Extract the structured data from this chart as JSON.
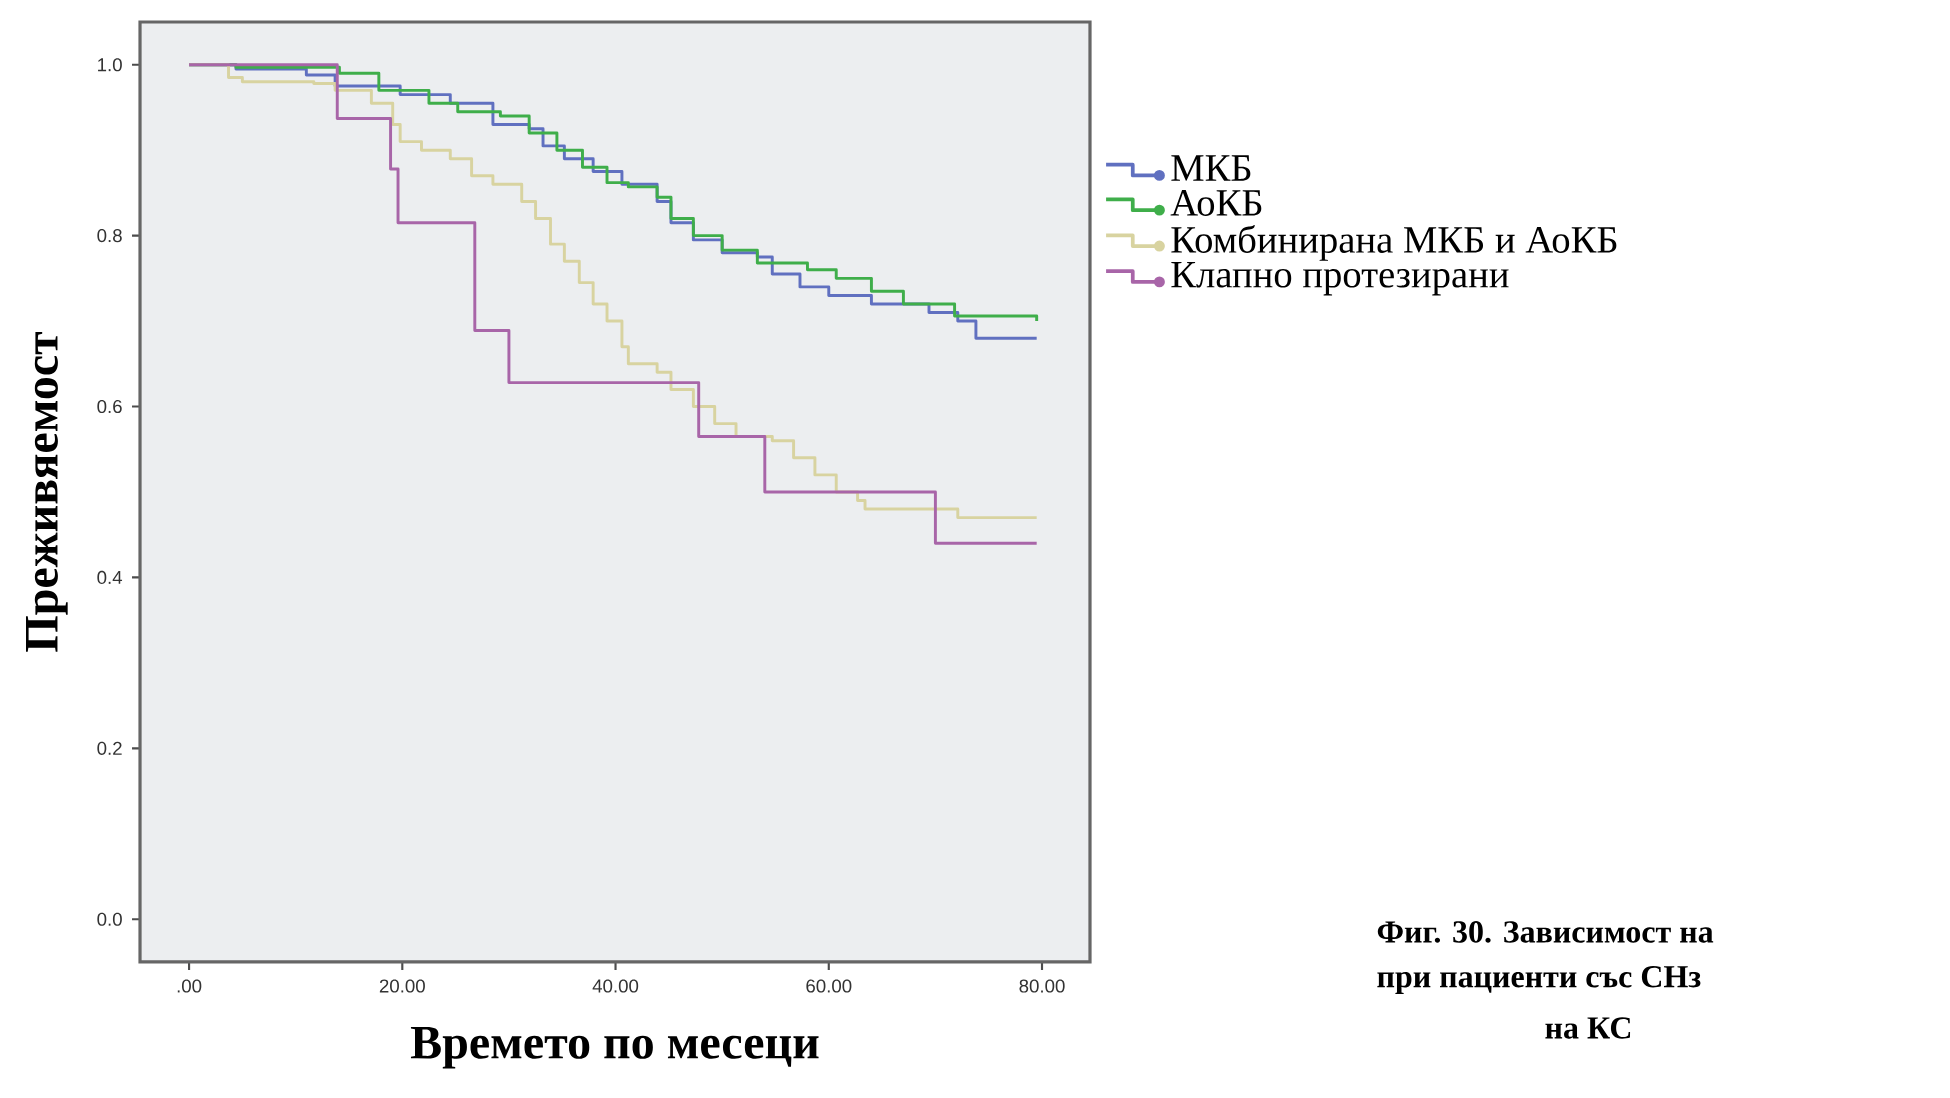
{
  "chart_data": {
    "type": "step",
    "xlabel": "Времето по месеци",
    "ylabel": "Преживяемост",
    "xlim": [
      -4.6,
      84.5
    ],
    "ylim": [
      -0.05,
      1.05
    ],
    "xticks": [
      {
        "value": 0,
        "label": ".00"
      },
      {
        "value": 20,
        "label": "20.00"
      },
      {
        "value": 40,
        "label": "40.00"
      },
      {
        "value": 60,
        "label": "60.00"
      },
      {
        "value": 80,
        "label": "80.00"
      }
    ],
    "yticks": [
      {
        "value": 0,
        "label": "0.0"
      },
      {
        "value": 0.2,
        "label": "0.2"
      },
      {
        "value": 0.4,
        "label": "0.4"
      },
      {
        "value": 0.6,
        "label": "0.6"
      },
      {
        "value": 0.8,
        "label": "0.8"
      },
      {
        "value": 1.0,
        "label": "1.0"
      }
    ],
    "legend": "right",
    "series": [
      {
        "name": "МКБ",
        "color": "#6070c0",
        "x": [
          0,
          4.4,
          11,
          13.7,
          19.8,
          24.5,
          28.5,
          31.9,
          33.2,
          35.2,
          37.9,
          40.6,
          43.9,
          45.2,
          47.3,
          50,
          53.3,
          54.7,
          57.3,
          60,
          64,
          69.4,
          72.1,
          73.8,
          79.5
        ],
        "values": [
          1.0,
          0.995,
          0.988,
          0.975,
          0.965,
          0.955,
          0.93,
          0.925,
          0.905,
          0.89,
          0.875,
          0.86,
          0.84,
          0.815,
          0.795,
          0.78,
          0.775,
          0.755,
          0.74,
          0.73,
          0.72,
          0.71,
          0.7,
          0.68,
          0.68
        ]
      },
      {
        "name": "АоКБ",
        "color": "#3fae4a",
        "x": [
          0,
          4.4,
          14.1,
          17.8,
          22.5,
          25.2,
          29.2,
          31.9,
          34.5,
          36.9,
          39.2,
          41.2,
          43.9,
          45.2,
          47.3,
          50,
          53.3,
          58,
          60.7,
          64,
          67,
          71.8,
          79.5
        ],
        "values": [
          1.0,
          0.997,
          0.99,
          0.97,
          0.955,
          0.945,
          0.94,
          0.92,
          0.9,
          0.88,
          0.862,
          0.857,
          0.845,
          0.82,
          0.8,
          0.783,
          0.768,
          0.76,
          0.75,
          0.735,
          0.72,
          0.706,
          0.7
        ]
      },
      {
        "name": "Комбинирана МКБ и АоКБ",
        "color": "#d8d3a0",
        "x": [
          0,
          3.7,
          5,
          11.7,
          13.7,
          17.1,
          19.1,
          19.8,
          21.8,
          24.5,
          26.5,
          28.5,
          31.2,
          32.5,
          33.9,
          35.2,
          36.6,
          37.9,
          39.2,
          40.6,
          41.2,
          43.9,
          45.2,
          47.3,
          49.3,
          51.3,
          54.7,
          56.7,
          58.7,
          60.7,
          62.7,
          63.4,
          69.4,
          72.1,
          79.5
        ],
        "values": [
          1.0,
          0.985,
          0.98,
          0.978,
          0.97,
          0.955,
          0.93,
          0.91,
          0.9,
          0.89,
          0.87,
          0.86,
          0.84,
          0.82,
          0.79,
          0.77,
          0.745,
          0.72,
          0.7,
          0.67,
          0.65,
          0.64,
          0.62,
          0.6,
          0.58,
          0.565,
          0.56,
          0.54,
          0.52,
          0.5,
          0.49,
          0.48,
          0.48,
          0.47,
          0.47
        ]
      },
      {
        "name": "Клапно протезирани",
        "color": "#a865a8",
        "x": [
          0,
          13.9,
          18.9,
          19.6,
          26.8,
          30.0,
          47.8,
          54.0,
          70.0,
          79.5
        ],
        "values": [
          1.0,
          0.937,
          0.878,
          0.815,
          0.689,
          0.628,
          0.565,
          0.5,
          0.44,
          0.44
        ]
      }
    ],
    "annotations": [
      "Фиг. 30. Зависимост на",
      "при пациенти със СНз",
      "на КС"
    ]
  }
}
